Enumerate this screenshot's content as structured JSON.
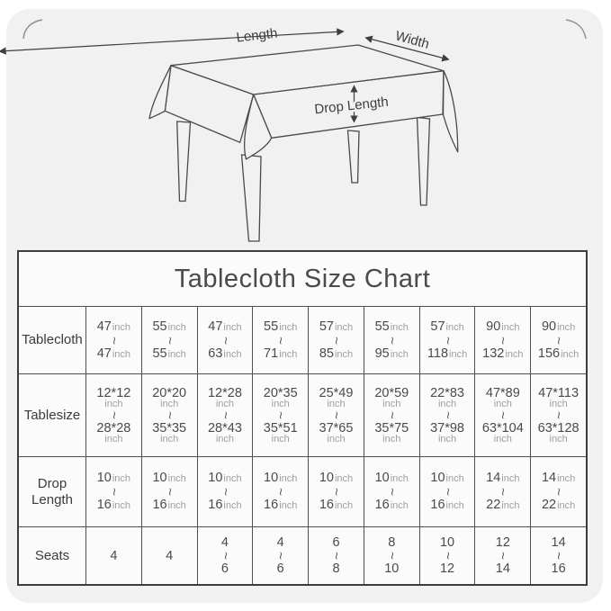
{
  "diagram": {
    "labels": {
      "length": "Length",
      "width": "Width",
      "drop_length": "Drop Length"
    }
  },
  "size_table": {
    "title": "Tablecloth Size Chart",
    "range_symbol": "~",
    "unit": "inch",
    "rows": [
      {
        "label": "Tablecloth",
        "unit_style": "inline",
        "cells": [
          {
            "from": "47",
            "to": "47"
          },
          {
            "from": "55",
            "to": "55"
          },
          {
            "from": "47",
            "to": "63"
          },
          {
            "from": "55",
            "to": "71"
          },
          {
            "from": "57",
            "to": "85"
          },
          {
            "from": "55",
            "to": "95"
          },
          {
            "from": "57",
            "to": "118"
          },
          {
            "from": "90",
            "to": "132"
          },
          {
            "from": "90",
            "to": "156"
          }
        ]
      },
      {
        "label": "Tablesize",
        "unit_style": "below",
        "cells": [
          {
            "from": "12*12",
            "to": "28*28"
          },
          {
            "from": "20*20",
            "to": "35*35"
          },
          {
            "from": "12*28",
            "to": "28*43"
          },
          {
            "from": "20*35",
            "to": "35*51"
          },
          {
            "from": "25*49",
            "to": "37*65"
          },
          {
            "from": "20*59",
            "to": "35*75"
          },
          {
            "from": "22*83",
            "to": "37*98"
          },
          {
            "from": "47*89",
            "to": "63*104"
          },
          {
            "from": "47*113",
            "to": "63*128"
          }
        ]
      },
      {
        "label": "Drop Length",
        "unit_style": "inline",
        "cells": [
          {
            "from": "10",
            "to": "16"
          },
          {
            "from": "10",
            "to": "16"
          },
          {
            "from": "10",
            "to": "16"
          },
          {
            "from": "10",
            "to": "16"
          },
          {
            "from": "10",
            "to": "16"
          },
          {
            "from": "10",
            "to": "16"
          },
          {
            "from": "10",
            "to": "16"
          },
          {
            "from": "14",
            "to": "22"
          },
          {
            "from": "14",
            "to": "22"
          }
        ]
      },
      {
        "label": "Seats",
        "unit_style": "none",
        "cells": [
          {
            "value": "4"
          },
          {
            "value": "4"
          },
          {
            "from": "4",
            "to": "6"
          },
          {
            "from": "4",
            "to": "6"
          },
          {
            "from": "6",
            "to": "8"
          },
          {
            "from": "8",
            "to": "10"
          },
          {
            "from": "10",
            "to": "12"
          },
          {
            "from": "12",
            "to": "14"
          },
          {
            "from": "14",
            "to": "16"
          }
        ]
      }
    ]
  },
  "chart_data": {
    "type": "table",
    "title": "Tablecloth Size Chart",
    "row_headers": [
      "Tablecloth",
      "Tablesize",
      "Drop Length",
      "Seats"
    ],
    "rows": [
      [
        "47inch~47inch",
        "55inch~55inch",
        "47inch~63inch",
        "55inch~71inch",
        "57inch~85inch",
        "55inch~95inch",
        "57inch~118inch",
        "90inch~132inch",
        "90inch~156inch"
      ],
      [
        "12*12inch~28*28inch",
        "20*20inch~35*35inch",
        "12*28inch~28*43inch",
        "20*35inch~35*51inch",
        "25*49inch~37*65inch",
        "20*59inch~35*75inch",
        "22*83inch~37*98inch",
        "47*89inch~63*104inch",
        "47*113inch~63*128inch"
      ],
      [
        "10inch~16inch",
        "10inch~16inch",
        "10inch~16inch",
        "10inch~16inch",
        "10inch~16inch",
        "10inch~16inch",
        "10inch~16inch",
        "14inch~22inch",
        "14inch~22inch"
      ],
      [
        "4",
        "4",
        "4~6",
        "4~6",
        "6~8",
        "8~10",
        "10~12",
        "12~14",
        "14~16"
      ]
    ]
  },
  "colors": {
    "card_bg": "#f1f1f2",
    "cell_bg": "#fbfbfc",
    "border": "#4f4f4f",
    "text": "#4a4a4a",
    "unit_text": "#9e9e9e"
  }
}
